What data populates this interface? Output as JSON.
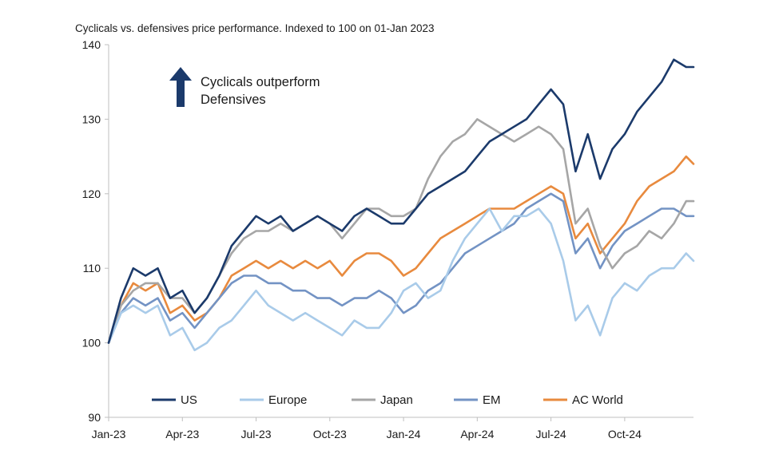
{
  "chart_data": {
    "type": "line",
    "title": "Cyclicals vs. defensives price performance. Indexed to 100 on 01-Jan 2023",
    "xlabel": "",
    "ylabel": "",
    "ylim": [
      90,
      140
    ],
    "yticks": [
      90,
      100,
      110,
      120,
      130,
      140
    ],
    "xlim": [
      0,
      23.8
    ],
    "xticks": [
      {
        "label": "Jan-23",
        "x": 0
      },
      {
        "label": "Apr-23",
        "x": 3
      },
      {
        "label": "Jul-23",
        "x": 6
      },
      {
        "label": "Oct-23",
        "x": 9
      },
      {
        "label": "Jan-24",
        "x": 12
      },
      {
        "label": "Apr-24",
        "x": 15
      },
      {
        "label": "Jul-24",
        "x": 18
      },
      {
        "label": "Oct-24",
        "x": 21
      }
    ],
    "grid": false,
    "legend_position": "bottom",
    "annotation": {
      "line1": "Cyclicals outperform",
      "line2": "Defensives"
    },
    "x": [
      0,
      0.5,
      1,
      1.5,
      2,
      2.5,
      3,
      3.5,
      4,
      4.5,
      5,
      5.5,
      6,
      6.5,
      7,
      7.5,
      8,
      8.5,
      9,
      9.5,
      10,
      10.5,
      11,
      11.5,
      12,
      12.5,
      13,
      13.5,
      14,
      14.5,
      15,
      15.5,
      16,
      16.5,
      17,
      17.5,
      18,
      18.5,
      19,
      19.5,
      20,
      20.5,
      21,
      21.5,
      22,
      22.5,
      23,
      23.5,
      23.8
    ],
    "series": [
      {
        "name": "US",
        "color": "#1b3a6b",
        "values": [
          100,
          106,
          110,
          109,
          110,
          106,
          107,
          104,
          106,
          109,
          113,
          115,
          117,
          116,
          117,
          115,
          116,
          117,
          116,
          115,
          117,
          118,
          117,
          116,
          116,
          118,
          120,
          121,
          122,
          123,
          125,
          127,
          128,
          129,
          130,
          132,
          134,
          132,
          123,
          128,
          122,
          126,
          128,
          131,
          133,
          135,
          138,
          137,
          137
        ]
      },
      {
        "name": "Europe",
        "color": "#a9cbe9",
        "values": [
          100,
          104,
          105,
          104,
          105,
          101,
          102,
          99,
          100,
          102,
          103,
          105,
          107,
          105,
          104,
          103,
          104,
          103,
          102,
          101,
          103,
          102,
          102,
          104,
          107,
          108,
          106,
          107,
          111,
          114,
          116,
          118,
          115,
          117,
          117,
          118,
          116,
          111,
          103,
          105,
          101,
          106,
          108,
          107,
          109,
          110,
          110,
          112,
          111
        ]
      },
      {
        "name": "Japan",
        "color": "#a6a6a6",
        "values": [
          100,
          105,
          107,
          108,
          108,
          106,
          106,
          104,
          106,
          109,
          112,
          114,
          115,
          115,
          116,
          115,
          116,
          117,
          116,
          114,
          116,
          118,
          118,
          117,
          117,
          118,
          122,
          125,
          127,
          128,
          130,
          129,
          128,
          127,
          128,
          129,
          128,
          126,
          116,
          118,
          113,
          110,
          112,
          113,
          115,
          114,
          116,
          119,
          119
        ]
      },
      {
        "name": "EM",
        "color": "#7393c4",
        "values": [
          100,
          104,
          106,
          105,
          106,
          103,
          104,
          102,
          104,
          106,
          108,
          109,
          109,
          108,
          108,
          107,
          107,
          106,
          106,
          105,
          106,
          106,
          107,
          106,
          104,
          105,
          107,
          108,
          110,
          112,
          113,
          114,
          115,
          116,
          118,
          119,
          120,
          119,
          112,
          114,
          110,
          113,
          115,
          116,
          117,
          118,
          118,
          117,
          117
        ]
      },
      {
        "name": "AC World",
        "color": "#e88a3e",
        "values": [
          100,
          105,
          108,
          107,
          108,
          104,
          105,
          103,
          104,
          106,
          109,
          110,
          111,
          110,
          111,
          110,
          111,
          110,
          111,
          109,
          111,
          112,
          112,
          111,
          109,
          110,
          112,
          114,
          115,
          116,
          117,
          118,
          118,
          118,
          119,
          120,
          121,
          120,
          114,
          116,
          112,
          114,
          116,
          119,
          121,
          122,
          123,
          125,
          124
        ]
      }
    ]
  }
}
